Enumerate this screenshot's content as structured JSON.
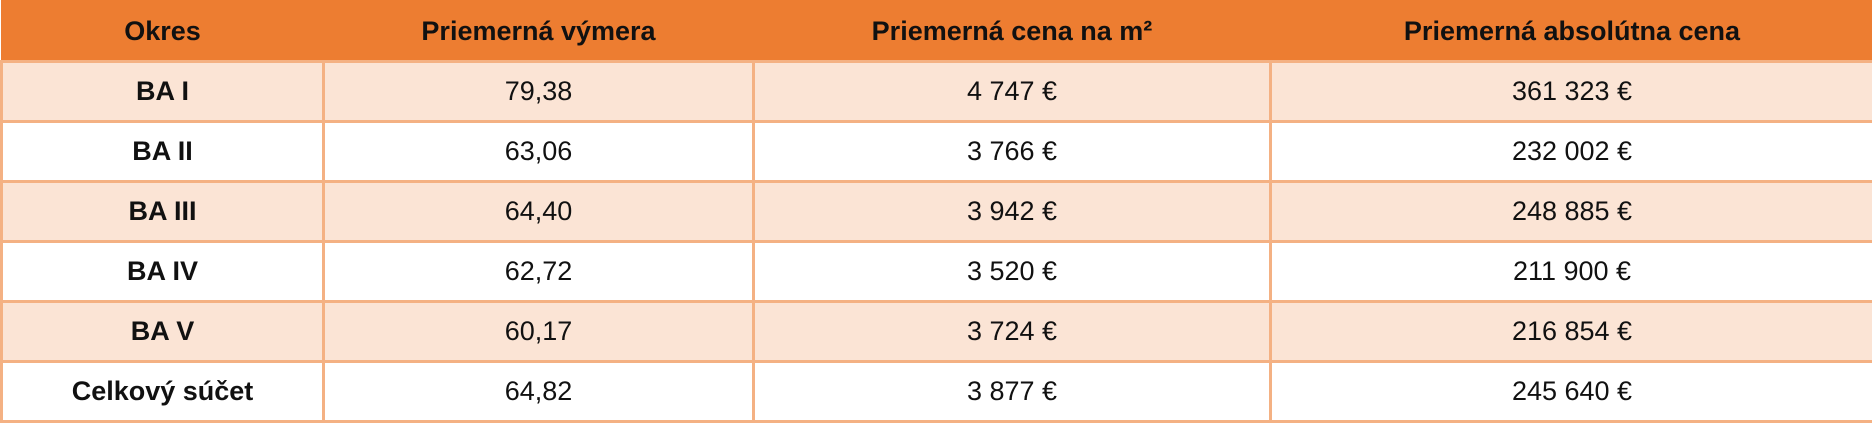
{
  "table": {
    "header": [
      "Okres",
      "Priemerná výmera",
      "Priemerná cena na m²",
      "Priemerná absolútna cena"
    ],
    "rows": [
      [
        "BA I",
        "79,38",
        "4 747 €",
        "361 323 €"
      ],
      [
        "BA II",
        "63,06",
        "3 766 €",
        "232 002 €"
      ],
      [
        "BA III",
        "64,40",
        "3 942 €",
        "248 885 €"
      ],
      [
        "BA IV",
        "62,72",
        "3 520 €",
        "211 900 €"
      ],
      [
        "BA V",
        "60,17",
        "3 724 €",
        "216 854 €"
      ],
      [
        "Celkový súčet",
        "64,82",
        "3 877 €",
        "245 640 €"
      ]
    ]
  }
}
